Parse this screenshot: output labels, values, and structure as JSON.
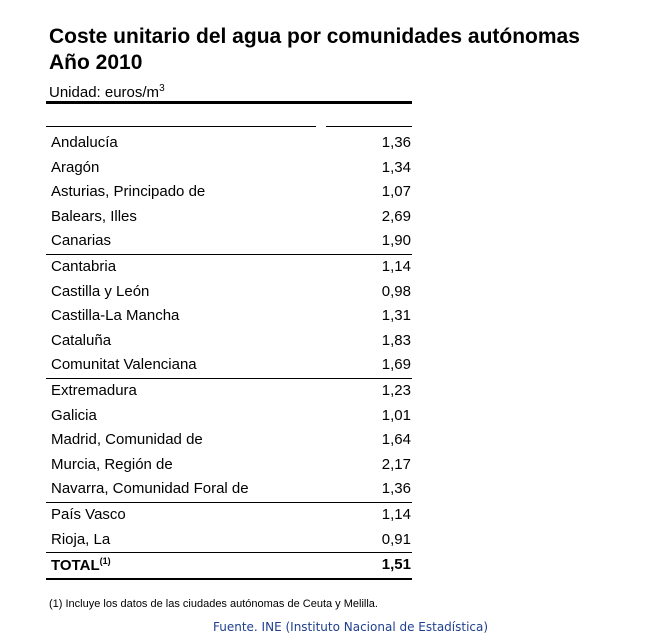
{
  "title_line1": "Coste unitario del agua por comunidades autónomas",
  "title_line2": "Año 2010",
  "unit_label": "Unidad: euros/m",
  "unit_sup": "3",
  "rows": [
    {
      "name": "Andalucía",
      "value": "1,36"
    },
    {
      "name": "Aragón",
      "value": "1,34"
    },
    {
      "name": "Asturias, Principado de",
      "value": "1,07"
    },
    {
      "name": "Balears, Illes",
      "value": "2,69"
    },
    {
      "name": "Canarias",
      "value": "1,90"
    },
    {
      "name": "Cantabria",
      "value": "1,14"
    },
    {
      "name": "Castilla y León",
      "value": "0,98"
    },
    {
      "name": "Castilla-La Mancha",
      "value": "1,31"
    },
    {
      "name": "Cataluña",
      "value": "1,83"
    },
    {
      "name": "Comunitat Valenciana",
      "value": "1,69"
    },
    {
      "name": "Extremadura",
      "value": "1,23"
    },
    {
      "name": "Galicia",
      "value": "1,01"
    },
    {
      "name": "Madrid, Comunidad de",
      "value": "1,64"
    },
    {
      "name": "Murcia, Región de",
      "value": "2,17"
    },
    {
      "name": "Navarra, Comunidad Foral de",
      "value": "1,36"
    },
    {
      "name": "País Vasco",
      "value": "1,14"
    },
    {
      "name": "Rioja, La",
      "value": "0,91"
    }
  ],
  "total": {
    "name": "TOTAL",
    "sup": "(1)",
    "value": "1,51"
  },
  "footnote": "(1) Incluye los datos de las ciudades autónomas de Ceuta y Melilla.",
  "source": "Fuente. INE (Instituto Nacional de Estadística)"
}
